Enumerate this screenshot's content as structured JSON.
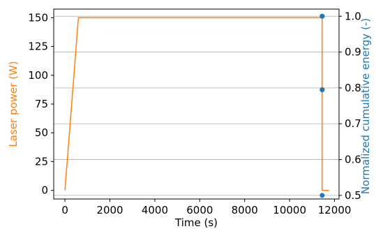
{
  "colors": {
    "power": "#ff7f0e",
    "energy": "#1f77b4",
    "grid": "#b0b0b0",
    "axis": "#000000"
  },
  "chart_data": {
    "type": "line",
    "xlabel": "Time (s)",
    "ylabel_left": "Laser power (W)",
    "ylabel_right": "Normalized cumulative energy (-)",
    "xlim": [
      -500,
      12200
    ],
    "ylim_left": [
      -7.5,
      157.5
    ],
    "ylim_right": [
      0.49,
      1.02
    ],
    "x_ticks": [
      0,
      2000,
      4000,
      6000,
      8000,
      10000,
      12000
    ],
    "y_ticks_left": [
      0,
      25,
      50,
      75,
      100,
      125,
      150
    ],
    "y_ticks_right": [
      0.5,
      0.6,
      0.7,
      0.8,
      0.9,
      1.0
    ],
    "y_tick_labels_right": [
      "0.5",
      "0.6",
      "0.7",
      "0.8",
      "0.9",
      "1.0"
    ],
    "grid": "horizontal, right axis",
    "series": [
      {
        "axis": "left",
        "style": "line",
        "x": [
          0,
          600,
          11450,
          11450,
          11750
        ],
        "y": [
          0,
          150,
          150,
          0,
          0
        ]
      },
      {
        "axis": "right",
        "style": "markers",
        "x": [
          11450,
          11450,
          11450,
          11450,
          11450
        ],
        "y": [
          0.5,
          0.795,
          0.795,
          1.0,
          1.0
        ]
      }
    ]
  }
}
